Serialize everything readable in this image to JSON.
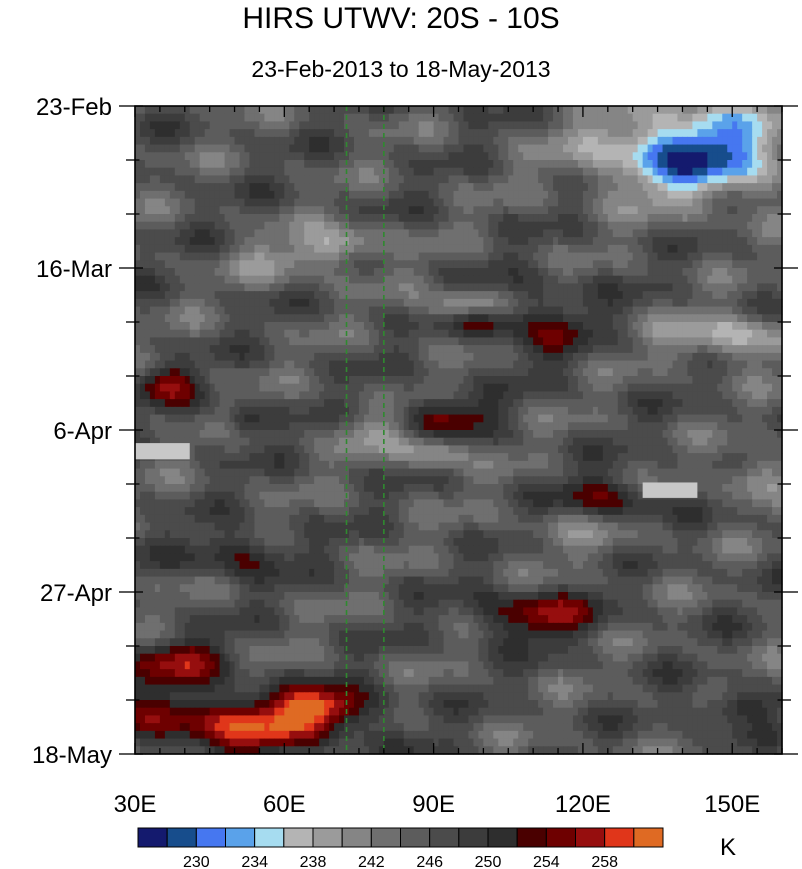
{
  "chart_data": {
    "type": "heatmap",
    "title": "HIRS UTWV: 20S - 10S",
    "subtitle": "23-Feb-2013 to 18-May-2013",
    "xlabel": "",
    "ylabel": "",
    "x_ticks": [
      {
        "value": 30,
        "label": "30E"
      },
      {
        "value": 60,
        "label": "60E"
      },
      {
        "value": 90,
        "label": "90E"
      },
      {
        "value": 120,
        "label": "120E"
      },
      {
        "value": 150,
        "label": "150E"
      }
    ],
    "xlim": [
      30,
      160
    ],
    "y_ticks": [
      {
        "day": 0,
        "label": "23-Feb"
      },
      {
        "day": 21,
        "label": "16-Mar"
      },
      {
        "day": 42,
        "label": "6-Apr"
      },
      {
        "day": 63,
        "label": "27-Apr"
      },
      {
        "day": 84,
        "label": "18-May"
      }
    ],
    "ylim_days": [
      0,
      84
    ],
    "reference_lines_x": [
      72.5,
      80
    ],
    "colorbar": {
      "unit": "K",
      "levels": [
        228,
        230,
        232,
        234,
        236,
        238,
        240,
        242,
        244,
        246,
        248,
        250,
        252,
        254,
        256,
        258,
        260
      ],
      "labels": [
        "230",
        "234",
        "238",
        "242",
        "246",
        "250",
        "254",
        "258"
      ],
      "colors": [
        "#141a6e",
        "#174d8c",
        "#4677f0",
        "#5aa2ea",
        "#a6dcf0",
        "#b4b4b4",
        "#9b9b9b",
        "#858585",
        "#6f6f6f",
        "#5c5c5c",
        "#4b4b4b",
        "#3c3c3c",
        "#2e2e2e",
        "#4a0000",
        "#6e0000",
        "#960e0e",
        "#e0361a",
        "#df6a23"
      ]
    },
    "missing_color": "#c8c8c8"
  }
}
